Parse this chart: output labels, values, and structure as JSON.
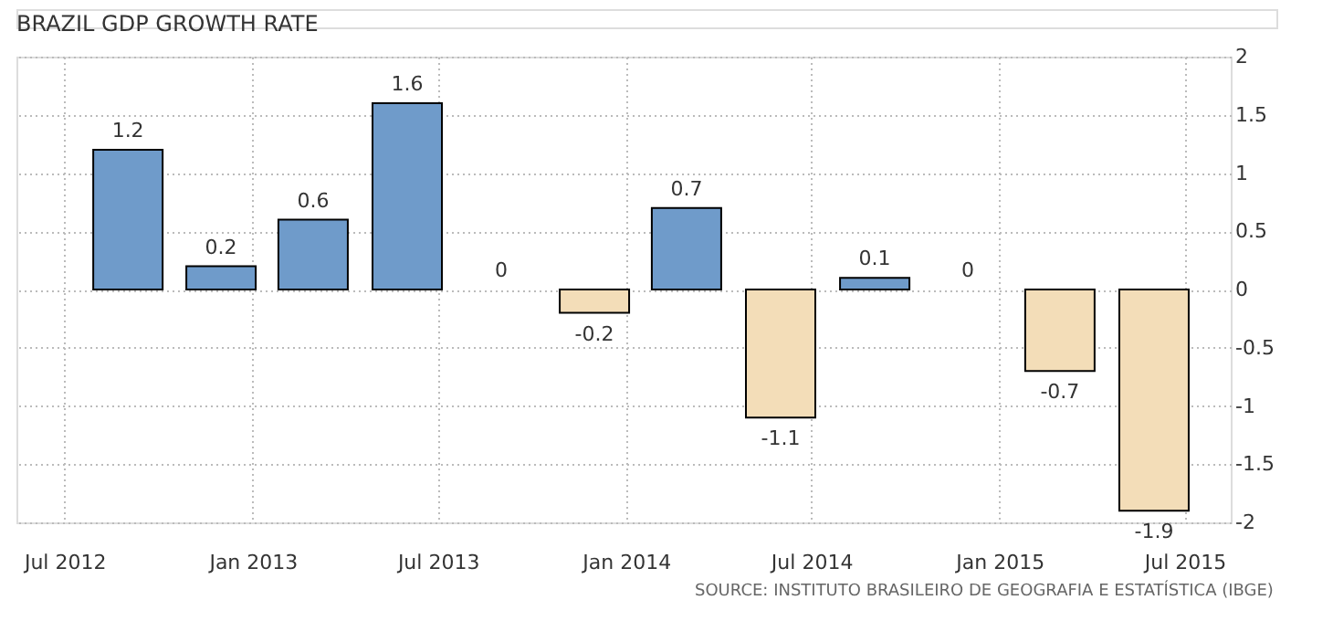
{
  "chart_data": {
    "type": "bar",
    "title": "BRAZIL GDP GROWTH RATE",
    "x": [
      "2012-09",
      "2012-12",
      "2013-03",
      "2013-06",
      "2013-09",
      "2013-12",
      "2014-03",
      "2014-06",
      "2014-09",
      "2014-12",
      "2015-03",
      "2015-06"
    ],
    "values": [
      1.2,
      0.2,
      0.6,
      1.6,
      0,
      -0.2,
      0.7,
      -1.1,
      0.1,
      0,
      -0.7,
      -1.9
    ],
    "colors": [
      "#6f9bca",
      "#6f9bca",
      "#6f9bca",
      "#6f9bca",
      "#6f9bca",
      "#f3ddb8",
      "#6f9bca",
      "#f3ddb8",
      "#6f9bca",
      "#6f9bca",
      "#f3ddb8",
      "#f3ddb8"
    ],
    "data_labels": true,
    "ylim": [
      -2,
      2
    ],
    "yticks": [
      -2,
      -1.5,
      -1,
      -0.5,
      0,
      0.5,
      1,
      1.5,
      2
    ],
    "xlim": [
      "2012-05-15",
      "2015-08-15"
    ],
    "xticks": [
      {
        "value": "2012-07",
        "label": "Jul 2012"
      },
      {
        "value": "2013-01",
        "label": "Jan 2013"
      },
      {
        "value": "2013-07",
        "label": "Jul 2013"
      },
      {
        "value": "2014-01",
        "label": "Jan 2014"
      },
      {
        "value": "2014-07",
        "label": "Jul 2014"
      },
      {
        "value": "2015-01",
        "label": "Jan 2015"
      },
      {
        "value": "2015-07",
        "label": "Jul 2015"
      }
    ],
    "grid": true,
    "annotations": [
      "SOURCE: INSTITUTO BRASILEIRO DE GEOGRAFIA E ESTATÍSTICA (IBGE)"
    ]
  }
}
